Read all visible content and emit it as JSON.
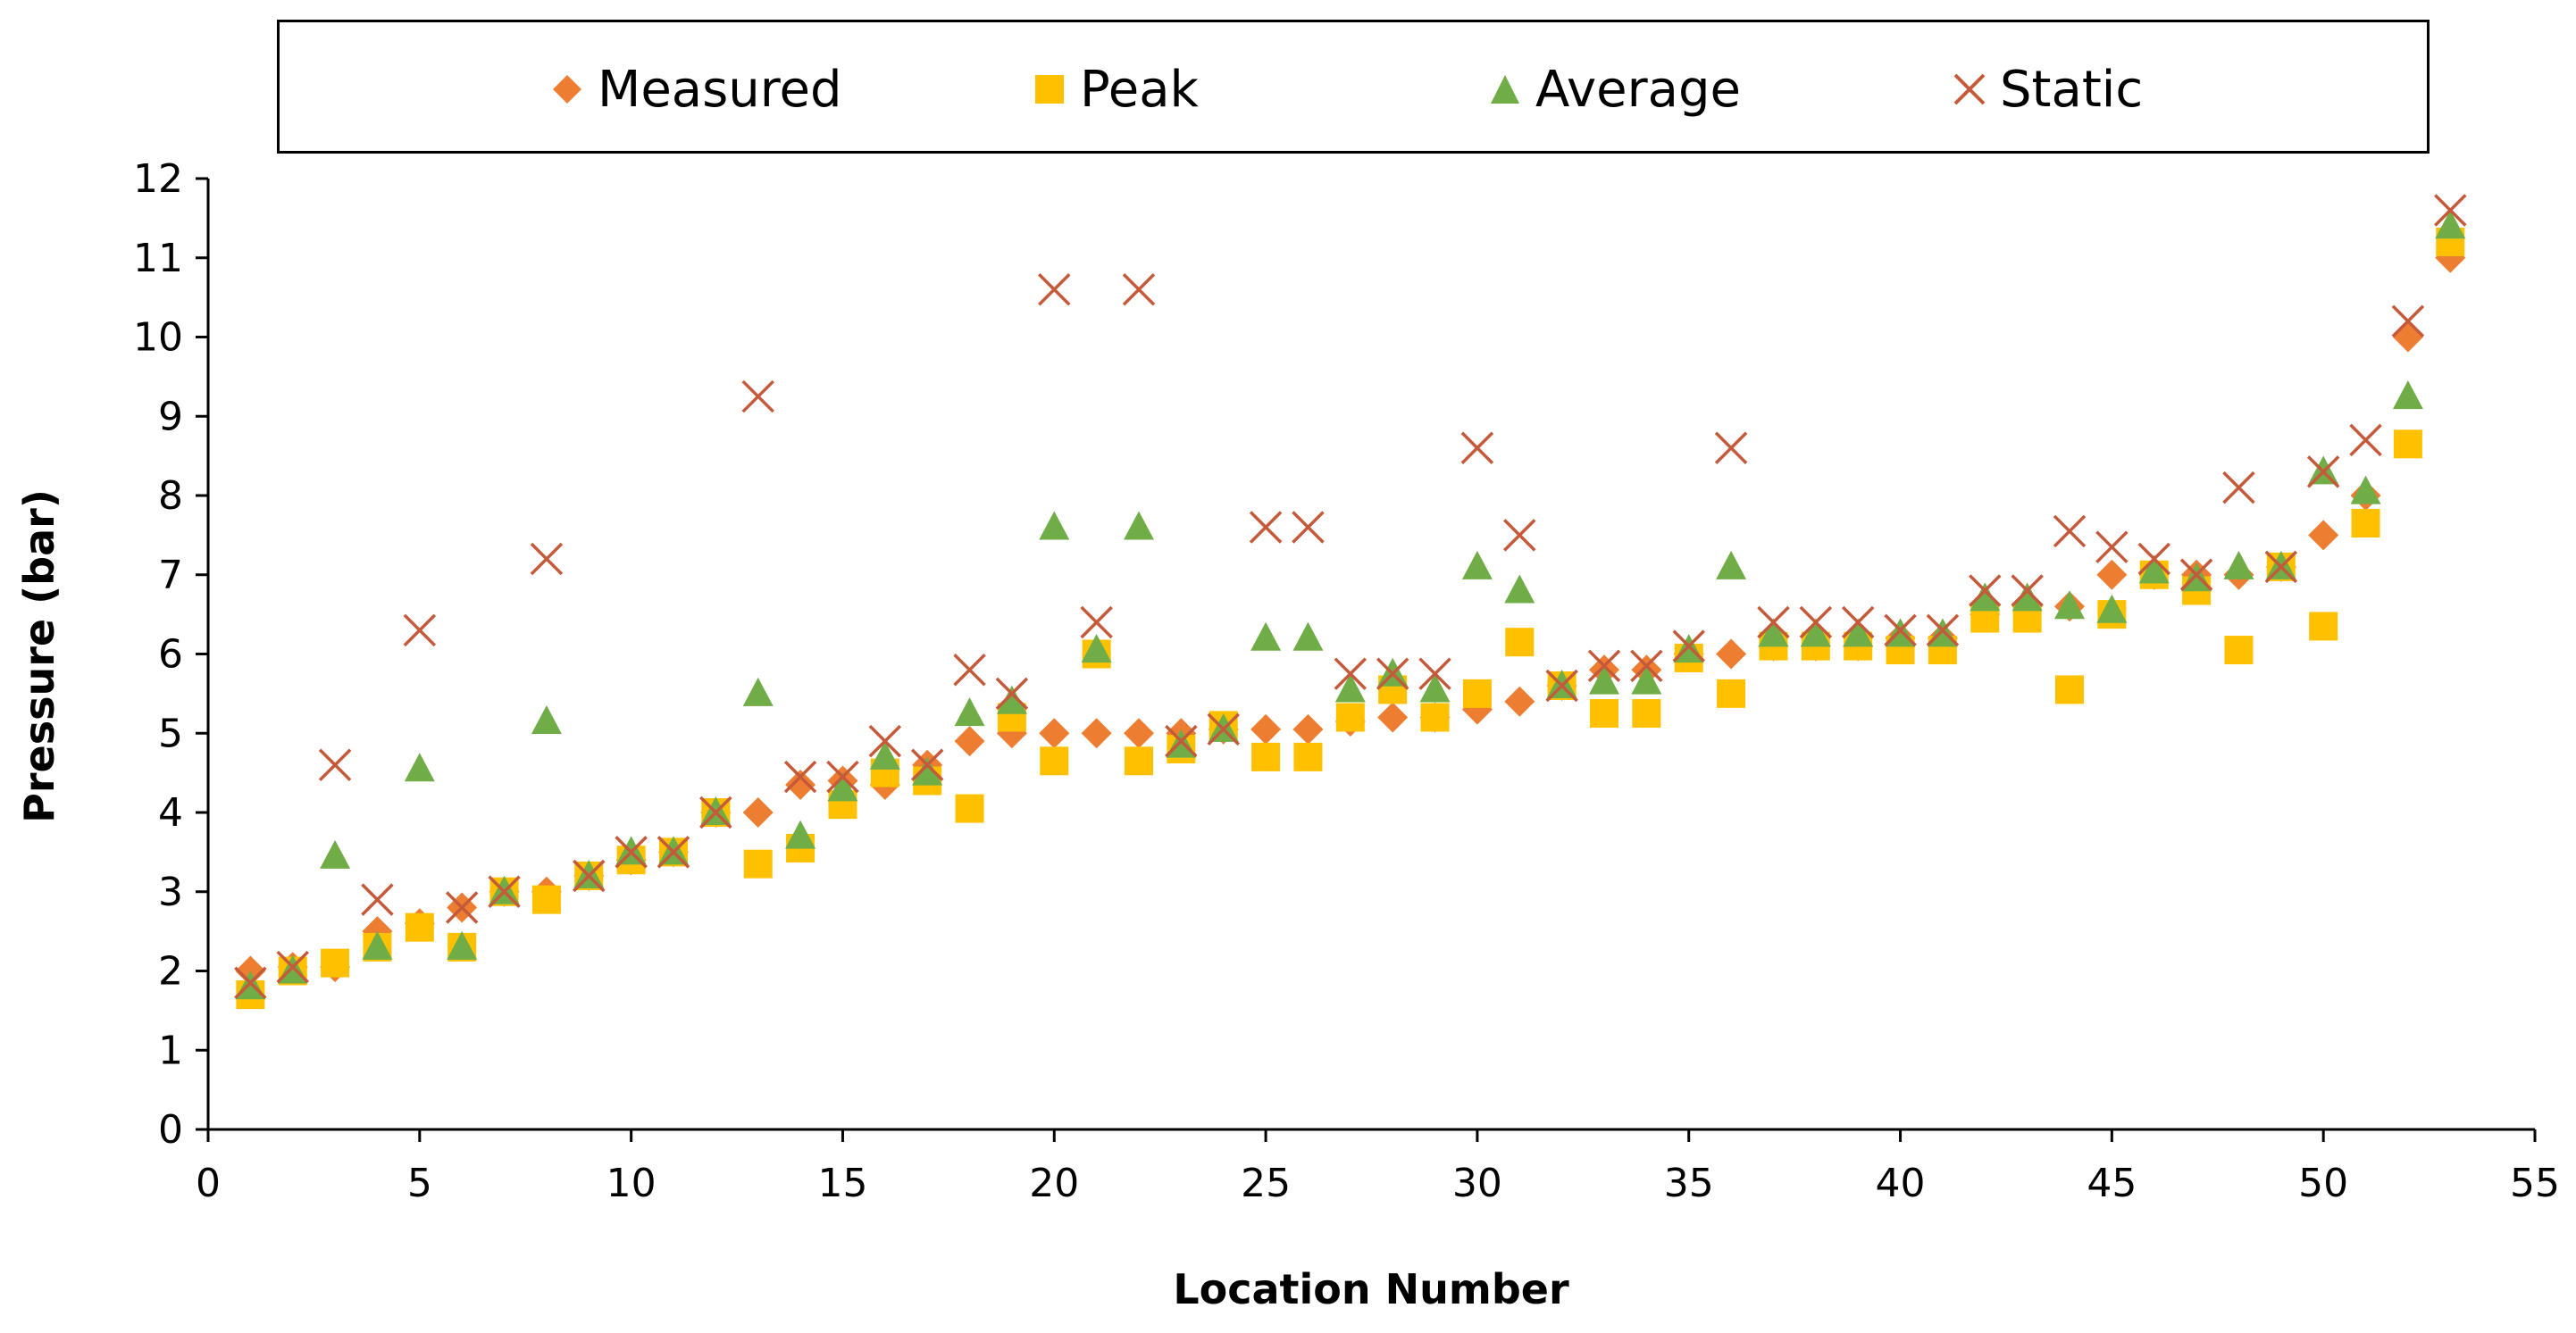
{
  "chart_data": {
    "type": "scatter",
    "title": "",
    "xlabel": "Location Number",
    "ylabel": "Pressure (bar)",
    "xlim": [
      0,
      55
    ],
    "ylim": [
      0,
      12
    ],
    "xticks": [
      0,
      5,
      10,
      15,
      20,
      25,
      30,
      35,
      40,
      45,
      50,
      55
    ],
    "yticks": [
      0,
      1,
      2,
      3,
      4,
      5,
      6,
      7,
      8,
      9,
      10,
      11,
      12
    ],
    "legend_position": "top",
    "x": [
      1,
      2,
      3,
      4,
      5,
      6,
      7,
      8,
      9,
      10,
      11,
      12,
      13,
      14,
      15,
      16,
      17,
      18,
      19,
      20,
      21,
      22,
      23,
      24,
      25,
      26,
      27,
      28,
      29,
      30,
      31,
      32,
      33,
      34,
      35,
      36,
      37,
      38,
      39,
      40,
      41,
      42,
      43,
      44,
      45,
      46,
      47,
      48,
      49,
      50,
      51,
      52,
      53
    ],
    "series": [
      {
        "name": "Measured",
        "marker": "diamond",
        "color": "#ED7D31",
        "values": [
          2.0,
          2.05,
          2.05,
          2.5,
          2.6,
          2.8,
          3.0,
          3.0,
          3.2,
          3.4,
          3.5,
          4.0,
          4.0,
          4.35,
          4.4,
          4.35,
          4.6,
          4.9,
          5.0,
          5.0,
          5.0,
          5.0,
          5.0,
          5.05,
          5.05,
          5.05,
          5.15,
          5.2,
          5.2,
          5.3,
          5.4,
          5.6,
          5.8,
          5.8,
          6.0,
          6.0,
          6.1,
          6.1,
          6.1,
          6.2,
          6.2,
          6.5,
          6.6,
          6.6,
          7.0,
          7.0,
          7.0,
          7.0,
          7.1,
          7.5,
          8.0,
          10.0,
          11.0
        ]
      },
      {
        "name": "Peak",
        "marker": "square",
        "color": "#FFC000",
        "values": [
          1.7,
          2.0,
          2.1,
          2.3,
          2.55,
          2.3,
          3.0,
          2.9,
          3.2,
          3.4,
          3.5,
          4.0,
          3.35,
          3.55,
          4.1,
          4.5,
          4.4,
          4.05,
          5.2,
          4.65,
          6.0,
          4.65,
          4.8,
          5.1,
          4.7,
          4.7,
          5.2,
          5.55,
          5.2,
          5.5,
          6.15,
          5.6,
          5.25,
          5.25,
          5.95,
          5.5,
          6.1,
          6.1,
          6.1,
          6.05,
          6.05,
          6.45,
          6.45,
          5.55,
          6.5,
          7.0,
          6.8,
          6.05,
          7.1,
          6.35,
          7.65,
          8.65,
          11.2
        ]
      },
      {
        "name": "Average",
        "marker": "triangle",
        "color": "#70AD47",
        "values": [
          1.8,
          2.0,
          3.45,
          2.3,
          4.55,
          2.3,
          3.0,
          5.15,
          3.2,
          3.5,
          3.5,
          4.0,
          5.5,
          3.7,
          4.3,
          4.7,
          4.5,
          5.25,
          5.4,
          7.6,
          6.05,
          7.6,
          4.85,
          5.05,
          6.2,
          6.2,
          5.55,
          5.75,
          5.55,
          7.1,
          6.8,
          5.6,
          5.65,
          5.65,
          6.05,
          7.1,
          6.25,
          6.25,
          6.25,
          6.25,
          6.25,
          6.7,
          6.7,
          6.6,
          6.55,
          7.05,
          6.95,
          7.1,
          7.1,
          8.3,
          8.05,
          9.25,
          11.4
        ]
      },
      {
        "name": "Static",
        "marker": "x",
        "color": "#C55A3B",
        "values": [
          1.85,
          2.05,
          4.6,
          2.9,
          6.3,
          2.8,
          3.0,
          7.2,
          3.2,
          3.5,
          3.5,
          4.0,
          9.25,
          4.45,
          4.45,
          4.9,
          4.6,
          5.8,
          5.5,
          10.6,
          6.4,
          10.6,
          4.9,
          5.05,
          7.6,
          7.6,
          5.75,
          5.75,
          5.75,
          8.6,
          7.5,
          5.6,
          5.85,
          5.85,
          6.1,
          8.6,
          6.4,
          6.4,
          6.4,
          6.3,
          6.3,
          6.8,
          6.8,
          7.55,
          7.35,
          7.2,
          7.0,
          8.1,
          7.1,
          8.3,
          8.7,
          10.2,
          11.6
        ]
      }
    ]
  }
}
